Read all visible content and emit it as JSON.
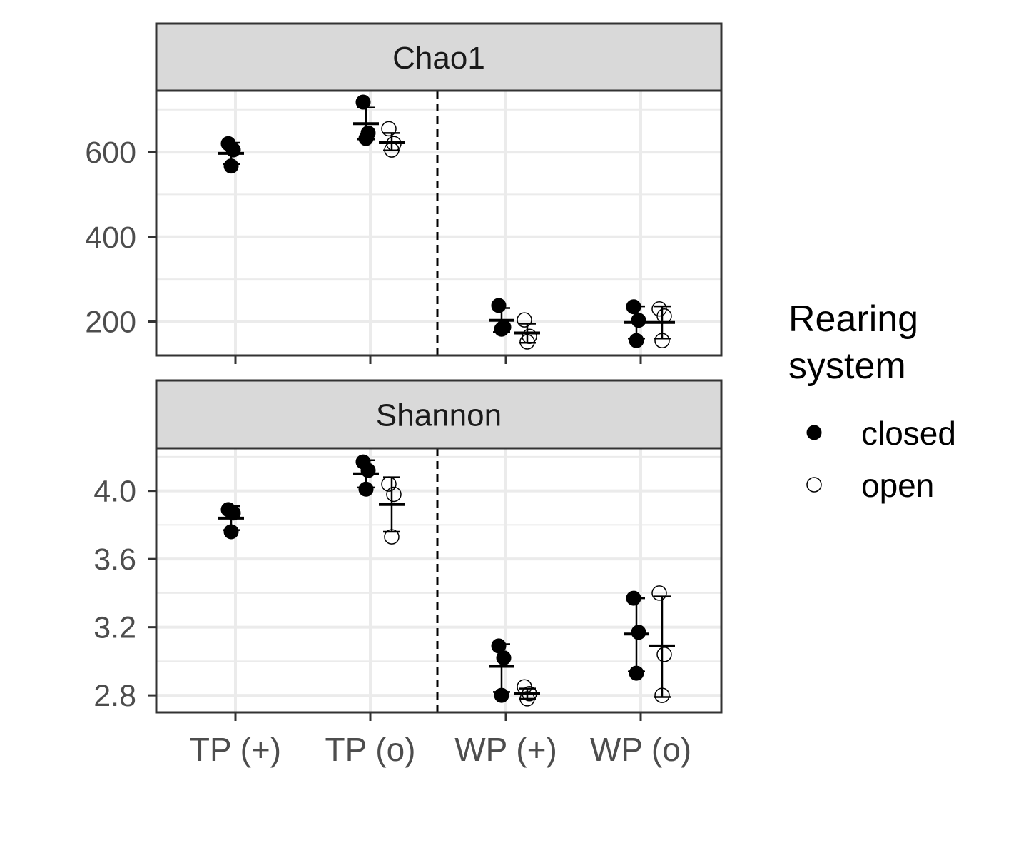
{
  "chart_data": {
    "type": "scatter",
    "categories": [
      "TP (+)",
      "TP (o)",
      "WP (+)",
      "WP (o)"
    ],
    "grid": true,
    "legend_position": "right",
    "divider_after_category": 2,
    "legend": {
      "title_lines": [
        "Rearing",
        "system"
      ],
      "entries": [
        {
          "name": "closed",
          "marker": "filled"
        },
        {
          "name": "open",
          "marker": "hollow"
        }
      ]
    },
    "panels": [
      {
        "title": "Chao1",
        "ylim": [
          120,
          745
        ],
        "ticks": [
          200,
          400,
          600
        ],
        "tick_labels": [
          "200",
          "400",
          "600"
        ],
        "series": [
          {
            "name": "closed",
            "groups": [
              {
                "category": "TP (+)",
                "points": [
                  620,
                  605,
                  567
                ],
                "mean": 597,
                "err": [
                  572,
                  622
                ]
              },
              {
                "category": "TP (o)",
                "points": [
                  718,
                  645,
                  632
                ],
                "mean": 667,
                "err": [
                  630,
                  705
                ]
              },
              {
                "category": "WP (+)",
                "points": [
                  238,
                  187,
                  182
                ],
                "mean": 203,
                "err": [
                  175,
                  232
                ]
              },
              {
                "category": "WP (o)",
                "points": [
                  235,
                  203,
                  155
                ],
                "mean": 198,
                "err": [
                  160,
                  236
                ]
              }
            ]
          },
          {
            "name": "open",
            "groups": [
              {
                "category": "TP (+)",
                "points": [],
                "mean": null,
                "err": null
              },
              {
                "category": "TP (o)",
                "points": [
                  655,
                  620,
                  605
                ],
                "mean": 622,
                "err": [
                  604,
                  645
                ]
              },
              {
                "category": "WP (+)",
                "points": [
                  204,
                  165,
                  152
                ],
                "mean": 173,
                "err": [
                  150,
                  195
                ]
              },
              {
                "category": "WP (o)",
                "points": [
                  230,
                  213,
                  155
                ],
                "mean": 198,
                "err": [
                  160,
                  236
                ]
              }
            ]
          }
        ]
      },
      {
        "title": "Shannon",
        "ylim": [
          2.7,
          4.25
        ],
        "ticks": [
          2.8,
          3.2,
          3.6,
          4.0
        ],
        "tick_labels": [
          "2.8",
          "3.2",
          "3.6",
          "4.0"
        ],
        "series": [
          {
            "name": "closed",
            "groups": [
              {
                "category": "TP (+)",
                "points": [
                  3.89,
                  3.87,
                  3.76
                ],
                "mean": 3.84,
                "err": [
                  3.77,
                  3.91
                ]
              },
              {
                "category": "TP (o)",
                "points": [
                  4.17,
                  4.12,
                  4.01
                ],
                "mean": 4.1,
                "err": [
                  4.02,
                  4.18
                ]
              },
              {
                "category": "WP (+)",
                "points": [
                  3.09,
                  3.02,
                  2.8
                ],
                "mean": 2.97,
                "err": [
                  2.82,
                  3.1
                ]
              },
              {
                "category": "WP (o)",
                "points": [
                  3.37,
                  3.17,
                  2.93
                ],
                "mean": 3.16,
                "err": [
                  2.94,
                  3.37
                ]
              }
            ]
          },
          {
            "name": "open",
            "groups": [
              {
                "category": "TP (+)",
                "points": [],
                "mean": null,
                "err": null
              },
              {
                "category": "TP (o)",
                "points": [
                  4.04,
                  3.98,
                  3.73
                ],
                "mean": 3.92,
                "err": [
                  3.76,
                  4.08
                ]
              },
              {
                "category": "WP (+)",
                "points": [
                  2.85,
                  2.81,
                  2.78
                ],
                "mean": 2.81,
                "err": [
                  2.78,
                  2.84
                ]
              },
              {
                "category": "WP (o)",
                "points": [
                  3.4,
                  3.04,
                  2.8
                ],
                "mean": 3.09,
                "err": [
                  2.79,
                  3.38
                ]
              }
            ]
          }
        ]
      }
    ]
  },
  "colors": {
    "strip_fill": "#d9d9d9",
    "panel_border": "#333333",
    "grid": "#ebebeb",
    "axis_text": "#4d4d4d",
    "text": "#1a1a1a",
    "point": "#000000"
  }
}
